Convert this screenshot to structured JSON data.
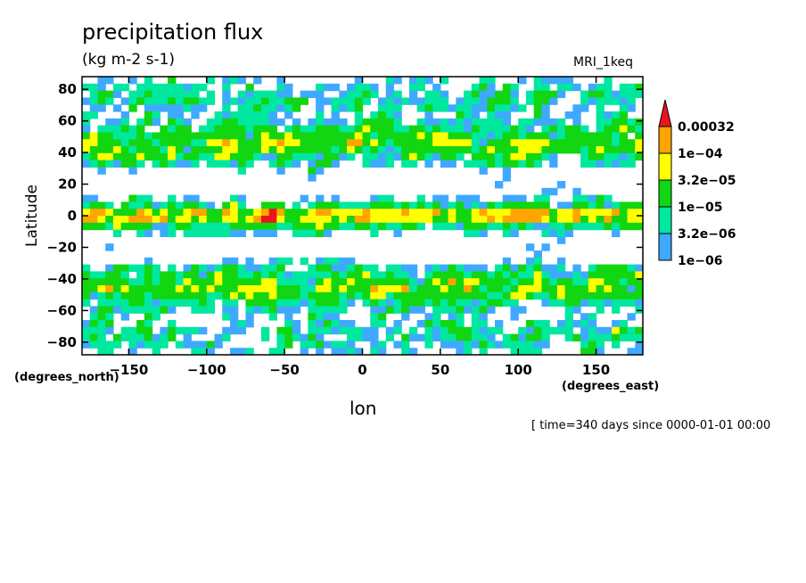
{
  "header": {
    "title": "precipitation flux",
    "units": "(kg m-2 s-1)",
    "model": "MRI_1keq"
  },
  "footer": {
    "time": "[ time=340 days since 0000-01-01 00:00"
  },
  "chart_data": {
    "type": "heatmap",
    "title": "precipitation flux",
    "subtitle": "(kg m-2 s-1)",
    "xlabel": "lon",
    "ylabel": "Latitude",
    "x_units": "(degrees_east)",
    "y_units": "(degrees_north)",
    "xlim": [
      -180,
      180
    ],
    "ylim": [
      -88,
      88
    ],
    "x_ticks": [
      -150,
      -100,
      -50,
      0,
      50,
      100,
      150
    ],
    "y_ticks": [
      80,
      60,
      40,
      20,
      0,
      -20,
      -40,
      -60,
      -80
    ],
    "colorbar": {
      "labels": [
        "0.00032",
        "1e-04",
        "3.2e-05",
        "1e-05",
        "3.2e-06",
        "1e-06"
      ],
      "levels": [
        1e-06,
        3.2e-06,
        1e-05,
        3.2e-05,
        0.0001,
        0.00032
      ],
      "colors": [
        "#3fa9ff",
        "#00e8a0",
        "#11d611",
        "#ffff00",
        "#ffa500",
        "#e8161b"
      ],
      "background": "#ffffff"
    },
    "grid": false
  }
}
